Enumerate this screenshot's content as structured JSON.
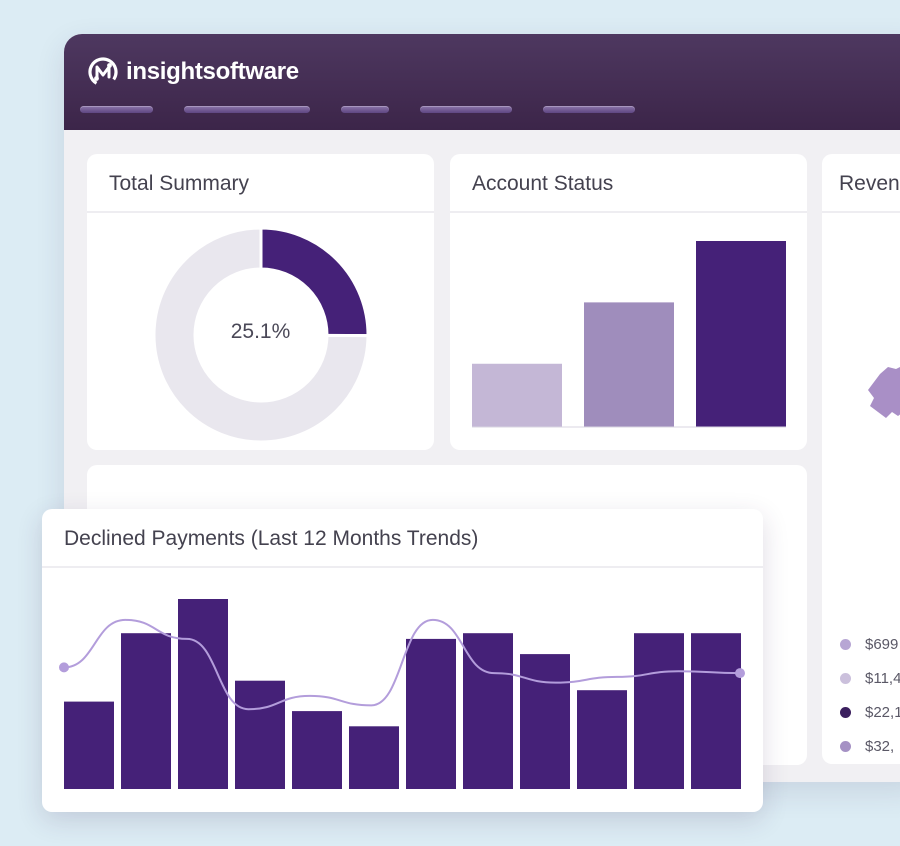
{
  "brand": {
    "name": "insightsoftware",
    "colors": {
      "header": "#3c2549",
      "primary": "#452178",
      "mid": "#9f8dbc",
      "light": "#c4b7d6",
      "track": "#e9e7ee",
      "line": "#b39ddb"
    }
  },
  "nav": {
    "tabs": [
      "",
      "",
      "",
      "",
      ""
    ]
  },
  "cards": {
    "total_summary": {
      "title": "Total Summary",
      "chart_data": {
        "type": "pie",
        "values": [
          25.1,
          74.9
        ],
        "center_label": "25.1%"
      }
    },
    "account_status": {
      "title": "Account Status",
      "chart_data": {
        "type": "bar",
        "values": [
          34,
          67,
          100
        ],
        "ylim": [
          0,
          100
        ]
      }
    },
    "revenue": {
      "title": "Reven",
      "legend": [
        {
          "label": "$699",
          "color": "#b7a6d4"
        },
        {
          "label": "$11,4",
          "color": "#cbc0dc"
        },
        {
          "label": "$22,1",
          "color": "#3b1f5e"
        },
        {
          "label": "$32,",
          "color": "#a591c4"
        }
      ]
    }
  },
  "declined_payments": {
    "title": "Declined Payments (Last 12 Months Trends)",
    "chart_data": {
      "type": "bar",
      "values": [
        46,
        82,
        100,
        57,
        41,
        33,
        79,
        82,
        71,
        52,
        82,
        82
      ],
      "line": [
        64,
        89,
        79,
        42,
        49,
        44,
        89,
        61,
        56,
        59,
        62,
        61
      ],
      "ylim": [
        0,
        100
      ]
    }
  }
}
